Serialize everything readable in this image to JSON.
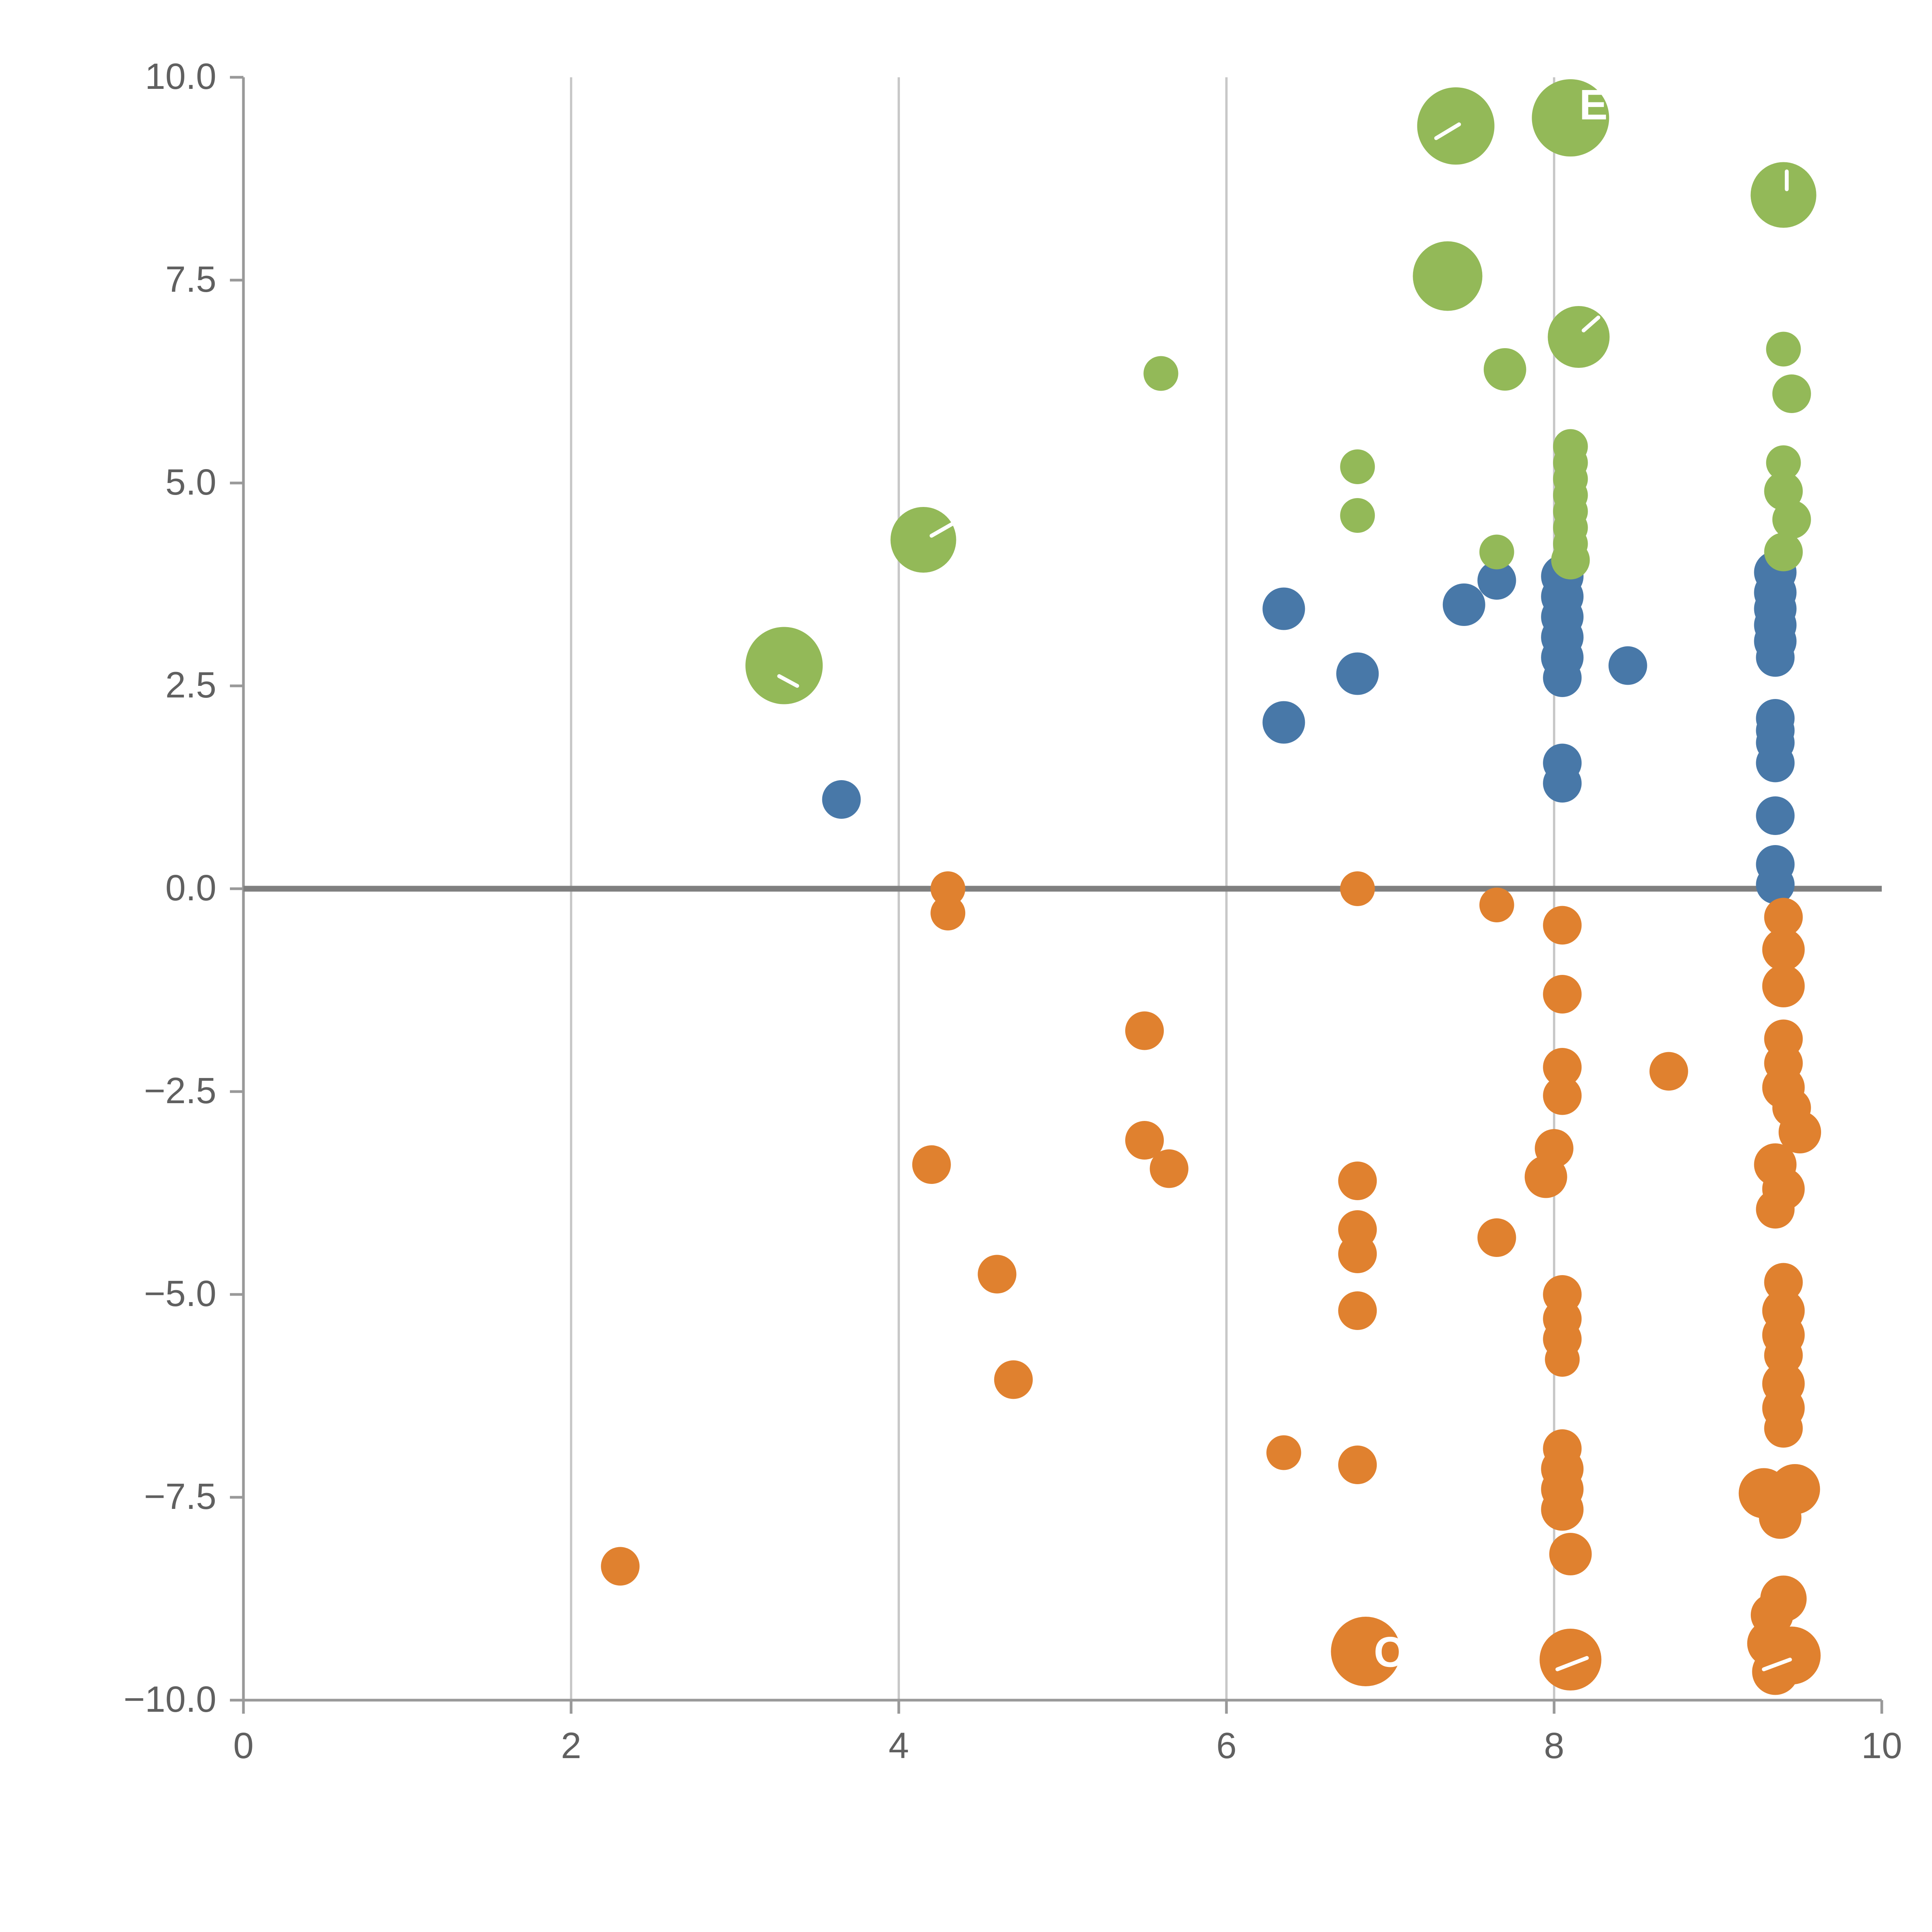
{
  "chart_data": {
    "type": "scatter",
    "title": "",
    "xlabel": "",
    "ylabel": "",
    "xlim": [
      0,
      10
    ],
    "ylim": [
      -10,
      10
    ],
    "xticks": [
      0,
      2,
      4,
      6,
      8,
      10
    ],
    "xtick_labels": [
      "0",
      "2",
      "4",
      "6",
      "8",
      "10"
    ],
    "yticks": [
      -10,
      -7.5,
      -5,
      -2.5,
      0,
      2.5,
      5,
      7.5,
      10
    ],
    "ytick_labels": [
      "−10.0",
      "−7.5",
      "−5.0",
      "−2.5",
      "0.0",
      "2.5",
      "5.0",
      "7.5",
      "10.0"
    ],
    "grid_x": [
      2,
      4,
      6,
      8
    ],
    "zero_line_y": 0,
    "legend": "none",
    "colors": {
      "grid": "#c8c8c8",
      "axis": "#999999",
      "zero_line": "#7f7f7f",
      "tick_text": "#606060",
      "annotation": "#ffffff"
    },
    "series": [
      {
        "name": "blue",
        "color": "#4878a8",
        "points": [
          [
            3.65,
            1.1,
            10
          ],
          [
            6.35,
            3.45,
            11
          ],
          [
            6.35,
            2.05,
            11
          ],
          [
            6.8,
            2.65,
            11
          ],
          [
            7.45,
            3.5,
            11
          ],
          [
            7.65,
            3.8,
            10
          ],
          [
            8.45,
            2.75,
            10
          ],
          [
            8.05,
            3.85,
            11
          ],
          [
            8.05,
            3.6,
            11
          ],
          [
            8.05,
            3.35,
            11
          ],
          [
            8.05,
            3.1,
            11
          ],
          [
            8.05,
            2.85,
            11
          ],
          [
            8.05,
            2.6,
            10
          ],
          [
            8.05,
            1.55,
            10
          ],
          [
            8.05,
            1.3,
            10
          ],
          [
            9.35,
            3.9,
            11
          ],
          [
            9.35,
            3.65,
            11
          ],
          [
            9.35,
            3.45,
            11
          ],
          [
            9.35,
            3.25,
            11
          ],
          [
            9.35,
            3.05,
            11
          ],
          [
            9.35,
            2.85,
            10
          ],
          [
            9.35,
            2.1,
            10
          ],
          [
            9.35,
            1.95,
            10
          ],
          [
            9.35,
            1.8,
            10
          ],
          [
            9.35,
            1.55,
            10
          ],
          [
            9.35,
            0.9,
            10
          ],
          [
            9.35,
            0.3,
            10
          ],
          [
            9.35,
            0.05,
            10
          ]
        ]
      },
      {
        "name": "orange",
        "color": "#e0812f",
        "points": [
          [
            4.3,
            0.0,
            9
          ],
          [
            4.3,
            -0.3,
            9
          ],
          [
            6.8,
            0.0,
            9
          ],
          [
            7.65,
            -0.2,
            9
          ],
          [
            8.05,
            -0.45,
            10
          ],
          [
            9.4,
            -0.35,
            10
          ],
          [
            9.4,
            -0.75,
            11
          ],
          [
            9.4,
            -1.2,
            11
          ],
          [
            8.05,
            -1.3,
            10
          ],
          [
            5.5,
            -1.75,
            10
          ],
          [
            8.05,
            -2.2,
            10
          ],
          [
            8.05,
            -2.55,
            10
          ],
          [
            8.7,
            -2.25,
            10
          ],
          [
            9.4,
            -1.85,
            10
          ],
          [
            9.4,
            -2.15,
            10
          ],
          [
            9.4,
            -2.45,
            11
          ],
          [
            9.45,
            -2.7,
            10
          ],
          [
            9.5,
            -3.0,
            11
          ],
          [
            4.2,
            -3.4,
            10
          ],
          [
            5.5,
            -3.1,
            10
          ],
          [
            5.65,
            -3.45,
            10
          ],
          [
            8.0,
            -3.2,
            10
          ],
          [
            7.95,
            -3.55,
            11
          ],
          [
            9.35,
            -3.4,
            11
          ],
          [
            9.4,
            -3.7,
            11
          ],
          [
            9.35,
            -3.95,
            10
          ],
          [
            6.8,
            -3.6,
            10
          ],
          [
            7.65,
            -4.3,
            10
          ],
          [
            6.8,
            -4.2,
            10
          ],
          [
            6.8,
            -4.5,
            10
          ],
          [
            4.6,
            -4.75,
            10
          ],
          [
            6.8,
            -5.2,
            10
          ],
          [
            8.05,
            -5.0,
            10
          ],
          [
            8.05,
            -5.3,
            10
          ],
          [
            8.05,
            -5.55,
            10
          ],
          [
            8.05,
            -5.8,
            9
          ],
          [
            9.4,
            -4.85,
            10
          ],
          [
            9.4,
            -5.2,
            11
          ],
          [
            9.4,
            -5.5,
            11
          ],
          [
            9.4,
            -5.75,
            10
          ],
          [
            4.7,
            -6.05,
            10
          ],
          [
            9.4,
            -6.1,
            11
          ],
          [
            9.4,
            -6.4,
            11
          ],
          [
            9.4,
            -6.65,
            10
          ],
          [
            6.35,
            -6.95,
            9
          ],
          [
            6.8,
            -7.1,
            10
          ],
          [
            8.05,
            -6.9,
            10
          ],
          [
            8.05,
            -7.15,
            11
          ],
          [
            8.05,
            -7.4,
            11
          ],
          [
            8.05,
            -7.65,
            11
          ],
          [
            9.28,
            -7.45,
            13
          ],
          [
            9.47,
            -7.4,
            13
          ],
          [
            9.38,
            -7.75,
            11
          ],
          [
            2.3,
            -8.35,
            10
          ],
          [
            8.1,
            -8.2,
            11
          ],
          [
            9.4,
            -8.75,
            12
          ],
          [
            9.33,
            -8.95,
            11
          ],
          [
            6.85,
            -9.4,
            18
          ],
          [
            8.1,
            -9.5,
            16
          ],
          [
            9.32,
            -9.3,
            12
          ],
          [
            9.45,
            -9.45,
            15
          ],
          [
            9.35,
            -9.65,
            12
          ]
        ]
      },
      {
        "name": "green",
        "color": "#93b958",
        "points": [
          [
            7.4,
            9.4,
            20
          ],
          [
            8.1,
            9.5,
            20
          ],
          [
            9.4,
            8.55,
            17
          ],
          [
            7.35,
            7.55,
            18
          ],
          [
            8.15,
            6.8,
            16
          ],
          [
            7.7,
            6.4,
            11
          ],
          [
            9.4,
            6.65,
            9
          ],
          [
            9.45,
            6.1,
            10
          ],
          [
            5.6,
            6.35,
            9
          ],
          [
            6.8,
            5.2,
            9
          ],
          [
            6.8,
            4.6,
            9
          ],
          [
            4.15,
            4.3,
            17
          ],
          [
            3.3,
            2.75,
            20
          ],
          [
            8.1,
            5.45,
            9
          ],
          [
            8.1,
            5.25,
            9
          ],
          [
            8.1,
            5.05,
            9
          ],
          [
            8.1,
            4.85,
            9
          ],
          [
            8.1,
            4.65,
            9
          ],
          [
            8.1,
            4.45,
            9
          ],
          [
            8.1,
            4.25,
            9
          ],
          [
            8.1,
            4.05,
            10
          ],
          [
            7.65,
            4.15,
            9
          ],
          [
            9.4,
            5.25,
            9
          ],
          [
            9.4,
            4.9,
            10
          ],
          [
            9.45,
            4.55,
            10
          ],
          [
            9.4,
            4.15,
            10
          ]
        ]
      }
    ],
    "annotations": {
      "texts": [
        {
          "x": 8.24,
          "y": 9.62,
          "t": "E",
          "size": 22
        },
        {
          "x": 7.0,
          "y": -9.45,
          "t": "O",
          "size": 22
        }
      ],
      "lines": [
        {
          "x1": 7.28,
          "y1": 9.25,
          "x2": 7.42,
          "y2": 9.42
        },
        {
          "x1": 4.2,
          "y1": 4.35,
          "x2": 4.33,
          "y2": 4.5
        },
        {
          "x1": 3.27,
          "y1": 2.62,
          "x2": 3.38,
          "y2": 2.5
        },
        {
          "x1": 8.18,
          "y1": 6.88,
          "x2": 8.27,
          "y2": 7.04
        },
        {
          "x1": 9.42,
          "y1": 8.62,
          "x2": 9.42,
          "y2": 8.84
        },
        {
          "x1": 8.02,
          "y1": -9.62,
          "x2": 8.2,
          "y2": -9.48
        },
        {
          "x1": 9.28,
          "y1": -9.62,
          "x2": 9.44,
          "y2": -9.5
        }
      ]
    }
  }
}
